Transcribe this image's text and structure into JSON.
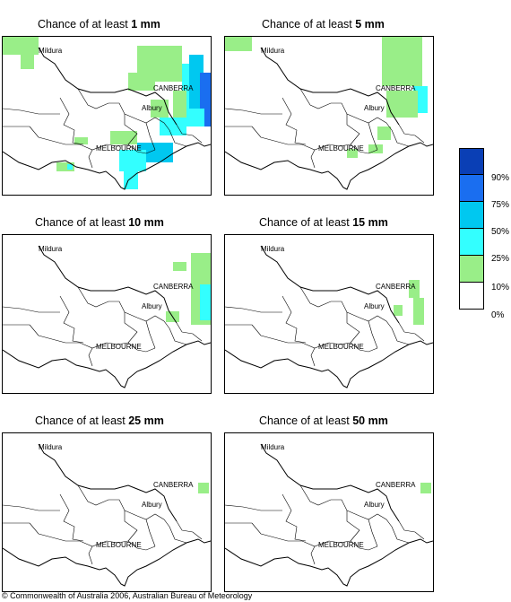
{
  "panels": [
    {
      "prefix": "Chance of at least ",
      "amount": "1 mm",
      "level": 5
    },
    {
      "prefix": "Chance of at least ",
      "amount": "5 mm",
      "level": 4
    },
    {
      "prefix": "Chance of at least ",
      "amount": "10 mm",
      "level": 3
    },
    {
      "prefix": "Chance of at least ",
      "amount": "15 mm",
      "level": 2
    },
    {
      "prefix": "Chance of at least ",
      "amount": "25 mm",
      "level": 1
    },
    {
      "prefix": "Chance of at least ",
      "amount": "50 mm",
      "level": 1
    }
  ],
  "places": {
    "mildura": "Mildura",
    "canberra": "CANBERRA",
    "albury": "Albury",
    "melbourne": "MELBOURNE"
  },
  "legend": {
    "bins": [
      {
        "label": "90%",
        "color": "#0a3fb5"
      },
      {
        "label": "75%",
        "color": "#1a6ef0"
      },
      {
        "label": "50%",
        "color": "#00c8f0"
      },
      {
        "label": "25%",
        "color": "#33ffff"
      },
      {
        "label": "10%",
        "color": "#99ee88"
      },
      {
        "label": "0%",
        "color": "#ffffff"
      }
    ]
  },
  "copyright": "© Commonwealth of Australia 2006, Australian Bureau of Meteorology"
}
